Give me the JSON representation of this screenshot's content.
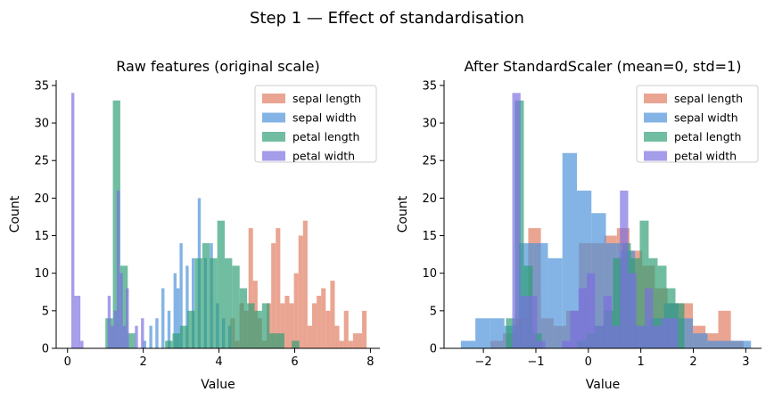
{
  "figure": {
    "title": "Step 1 — Effect of standardisation"
  },
  "chart_data": [
    {
      "type": "histogram",
      "title": "Raw features (original scale)",
      "xlabel": "Value",
      "ylabel": "Count",
      "xlim": [
        -0.3,
        8.25
      ],
      "ylim": [
        0,
        35.7
      ],
      "xticks": [
        0,
        2,
        4,
        6,
        8
      ],
      "yticks": [
        0,
        5,
        10,
        15,
        20,
        25,
        30,
        35
      ],
      "grid": false,
      "legend": "top-right",
      "series": [
        {
          "name": "sepal length",
          "color": "#E07A5F",
          "bin_start": 4.3,
          "bin_width": 0.12,
          "counts": [
            4,
            1,
            6,
            5,
            16,
            9,
            4,
            1,
            6,
            14,
            16,
            6,
            7,
            6,
            10,
            15,
            17,
            3,
            6,
            7,
            8,
            5,
            9,
            3,
            1,
            5,
            1,
            2,
            2,
            5
          ]
        },
        {
          "name": "sepal width",
          "color": "#4A90D9",
          "bin_start": 2.0,
          "bin_width": 0.08,
          "counts": [
            1,
            0,
            3,
            0,
            4,
            0,
            8,
            0,
            5,
            0,
            10,
            8,
            14,
            0,
            11,
            0,
            12,
            0,
            20,
            0,
            12,
            0,
            14,
            0,
            6,
            0,
            4,
            0,
            3,
            0
          ]
        },
        {
          "name": "petal length",
          "color": "#2E9E75",
          "bin_start": 1.0,
          "bin_width": 0.197,
          "counts": [
            4,
            33,
            11,
            2,
            0,
            0,
            0,
            0,
            1,
            2,
            3,
            5,
            12,
            14,
            12,
            17,
            12,
            11,
            8,
            6,
            5,
            6,
            2,
            2,
            0,
            1,
            0,
            0,
            0,
            0
          ]
        },
        {
          "name": "petal width",
          "color": "#7B6FE0",
          "bin_start": 0.1,
          "bin_width": 0.08,
          "counts": [
            34,
            7,
            7,
            1,
            0,
            0,
            0,
            0,
            0,
            0,
            0,
            0,
            7,
            3,
            5,
            21,
            10,
            3,
            8,
            0,
            0,
            3,
            0,
            4,
            0,
            0,
            0,
            0,
            0,
            0
          ]
        }
      ]
    },
    {
      "type": "histogram",
      "title": "After StandardScaler (mean=0, std=1)",
      "xlabel": "Value",
      "ylabel": "Count",
      "xlim": [
        -2.75,
        3.3
      ],
      "ylim": [
        0,
        35.7
      ],
      "xticks": [
        -2,
        -1,
        0,
        1,
        2,
        3
      ],
      "yticks": [
        0,
        5,
        10,
        15,
        20,
        25,
        30,
        35
      ],
      "grid": false,
      "legend": "top-right",
      "series": [
        {
          "name": "sepal length",
          "color": "#E07A5F",
          "bin_start": -1.87,
          "bin_width": 0.2414,
          "counts": [
            1,
            2,
            4,
            16,
            4,
            3,
            5,
            14,
            14,
            15,
            16,
            13,
            11,
            8,
            6,
            6,
            3,
            2,
            5,
            1
          ]
        },
        {
          "name": "sepal width",
          "color": "#4A90D9",
          "bin_start": -2.43,
          "bin_width": 0.2765,
          "counts": [
            1,
            4,
            4,
            3,
            14,
            14,
            12,
            26,
            21,
            18,
            14,
            13,
            3,
            4,
            6,
            4,
            2,
            1,
            1,
            1
          ]
        },
        {
          "name": "petal length",
          "color": "#2E9E75",
          "bin_start": -1.57,
          "bin_width": 0.17,
          "counts": [
            4,
            33,
            11,
            2,
            0,
            0,
            0,
            0,
            1,
            2,
            3,
            5,
            12,
            14,
            12,
            17,
            12,
            11,
            8,
            6
          ]
        },
        {
          "name": "petal width",
          "color": "#7B6FE0",
          "bin_start": -1.45,
          "bin_width": 0.1578,
          "counts": [
            34,
            7,
            7,
            1,
            0,
            0,
            1,
            5,
            8,
            10,
            3,
            7,
            3,
            21,
            10,
            3,
            8,
            3,
            4,
            4
          ]
        }
      ]
    }
  ]
}
